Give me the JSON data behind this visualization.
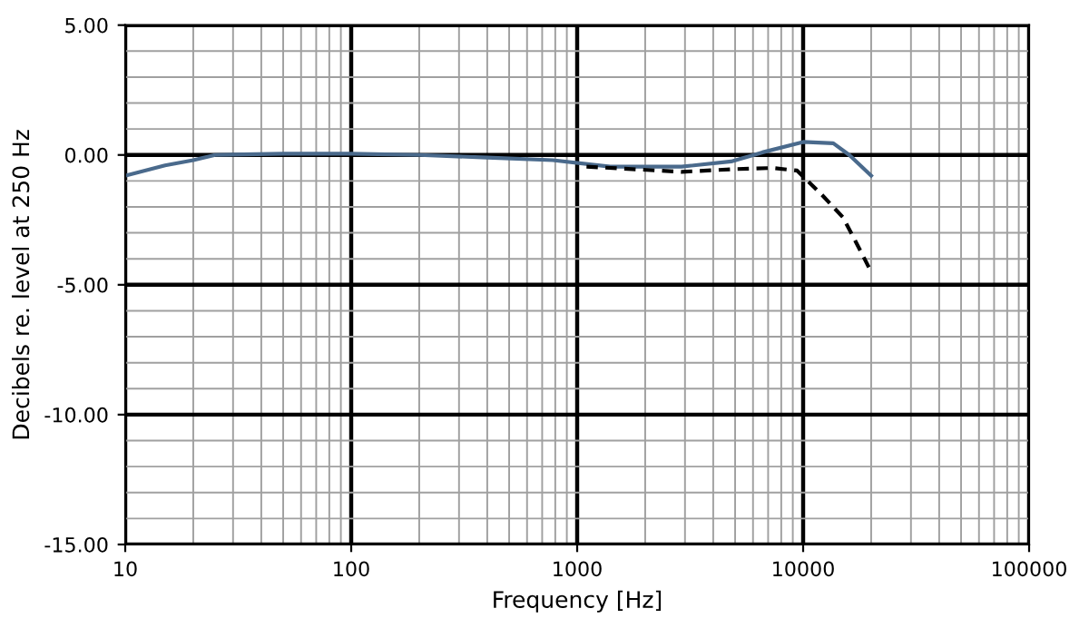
{
  "chart_data": {
    "type": "line",
    "xlabel": "Frequency [Hz]",
    "ylabel": "Decibels re. level at 250 Hz",
    "log": "x",
    "xlim": [
      10,
      100000
    ],
    "ylim": [
      -15,
      5
    ],
    "xticks": [
      10,
      100,
      1000,
      10000,
      100000
    ],
    "yticks": [
      {
        "value": -15,
        "label": "-15.00"
      },
      {
        "value": -10,
        "label": "-10.00"
      },
      {
        "value": -5,
        "label": "-5.00"
      },
      {
        "value": 0,
        "label": "0.00"
      },
      {
        "value": 5,
        "label": "5.00"
      }
    ],
    "grid": true,
    "series": [
      {
        "color": "#4a6a8c",
        "line_style": "solid",
        "x": [
          10,
          15,
          20,
          25,
          50,
          100,
          200,
          400,
          780,
          1400,
          2900,
          4800,
          6600,
          10000,
          13600,
          16000,
          20000
        ],
        "values": [
          -0.8,
          -0.4,
          -0.2,
          0.0,
          0.05,
          0.05,
          0.0,
          -0.1,
          -0.2,
          -0.45,
          -0.45,
          -0.25,
          0.1,
          0.5,
          0.45,
          0.0,
          -0.8
        ]
      },
      {
        "color": "#000000",
        "line_style": "dashed",
        "x": [
          1100,
          2900,
          4800,
          7300,
          9400,
          12000,
          15000,
          17000,
          20000
        ],
        "values": [
          -0.45,
          -0.65,
          -0.55,
          -0.5,
          -0.6,
          -1.5,
          -2.4,
          -3.3,
          -4.5
        ]
      }
    ]
  }
}
